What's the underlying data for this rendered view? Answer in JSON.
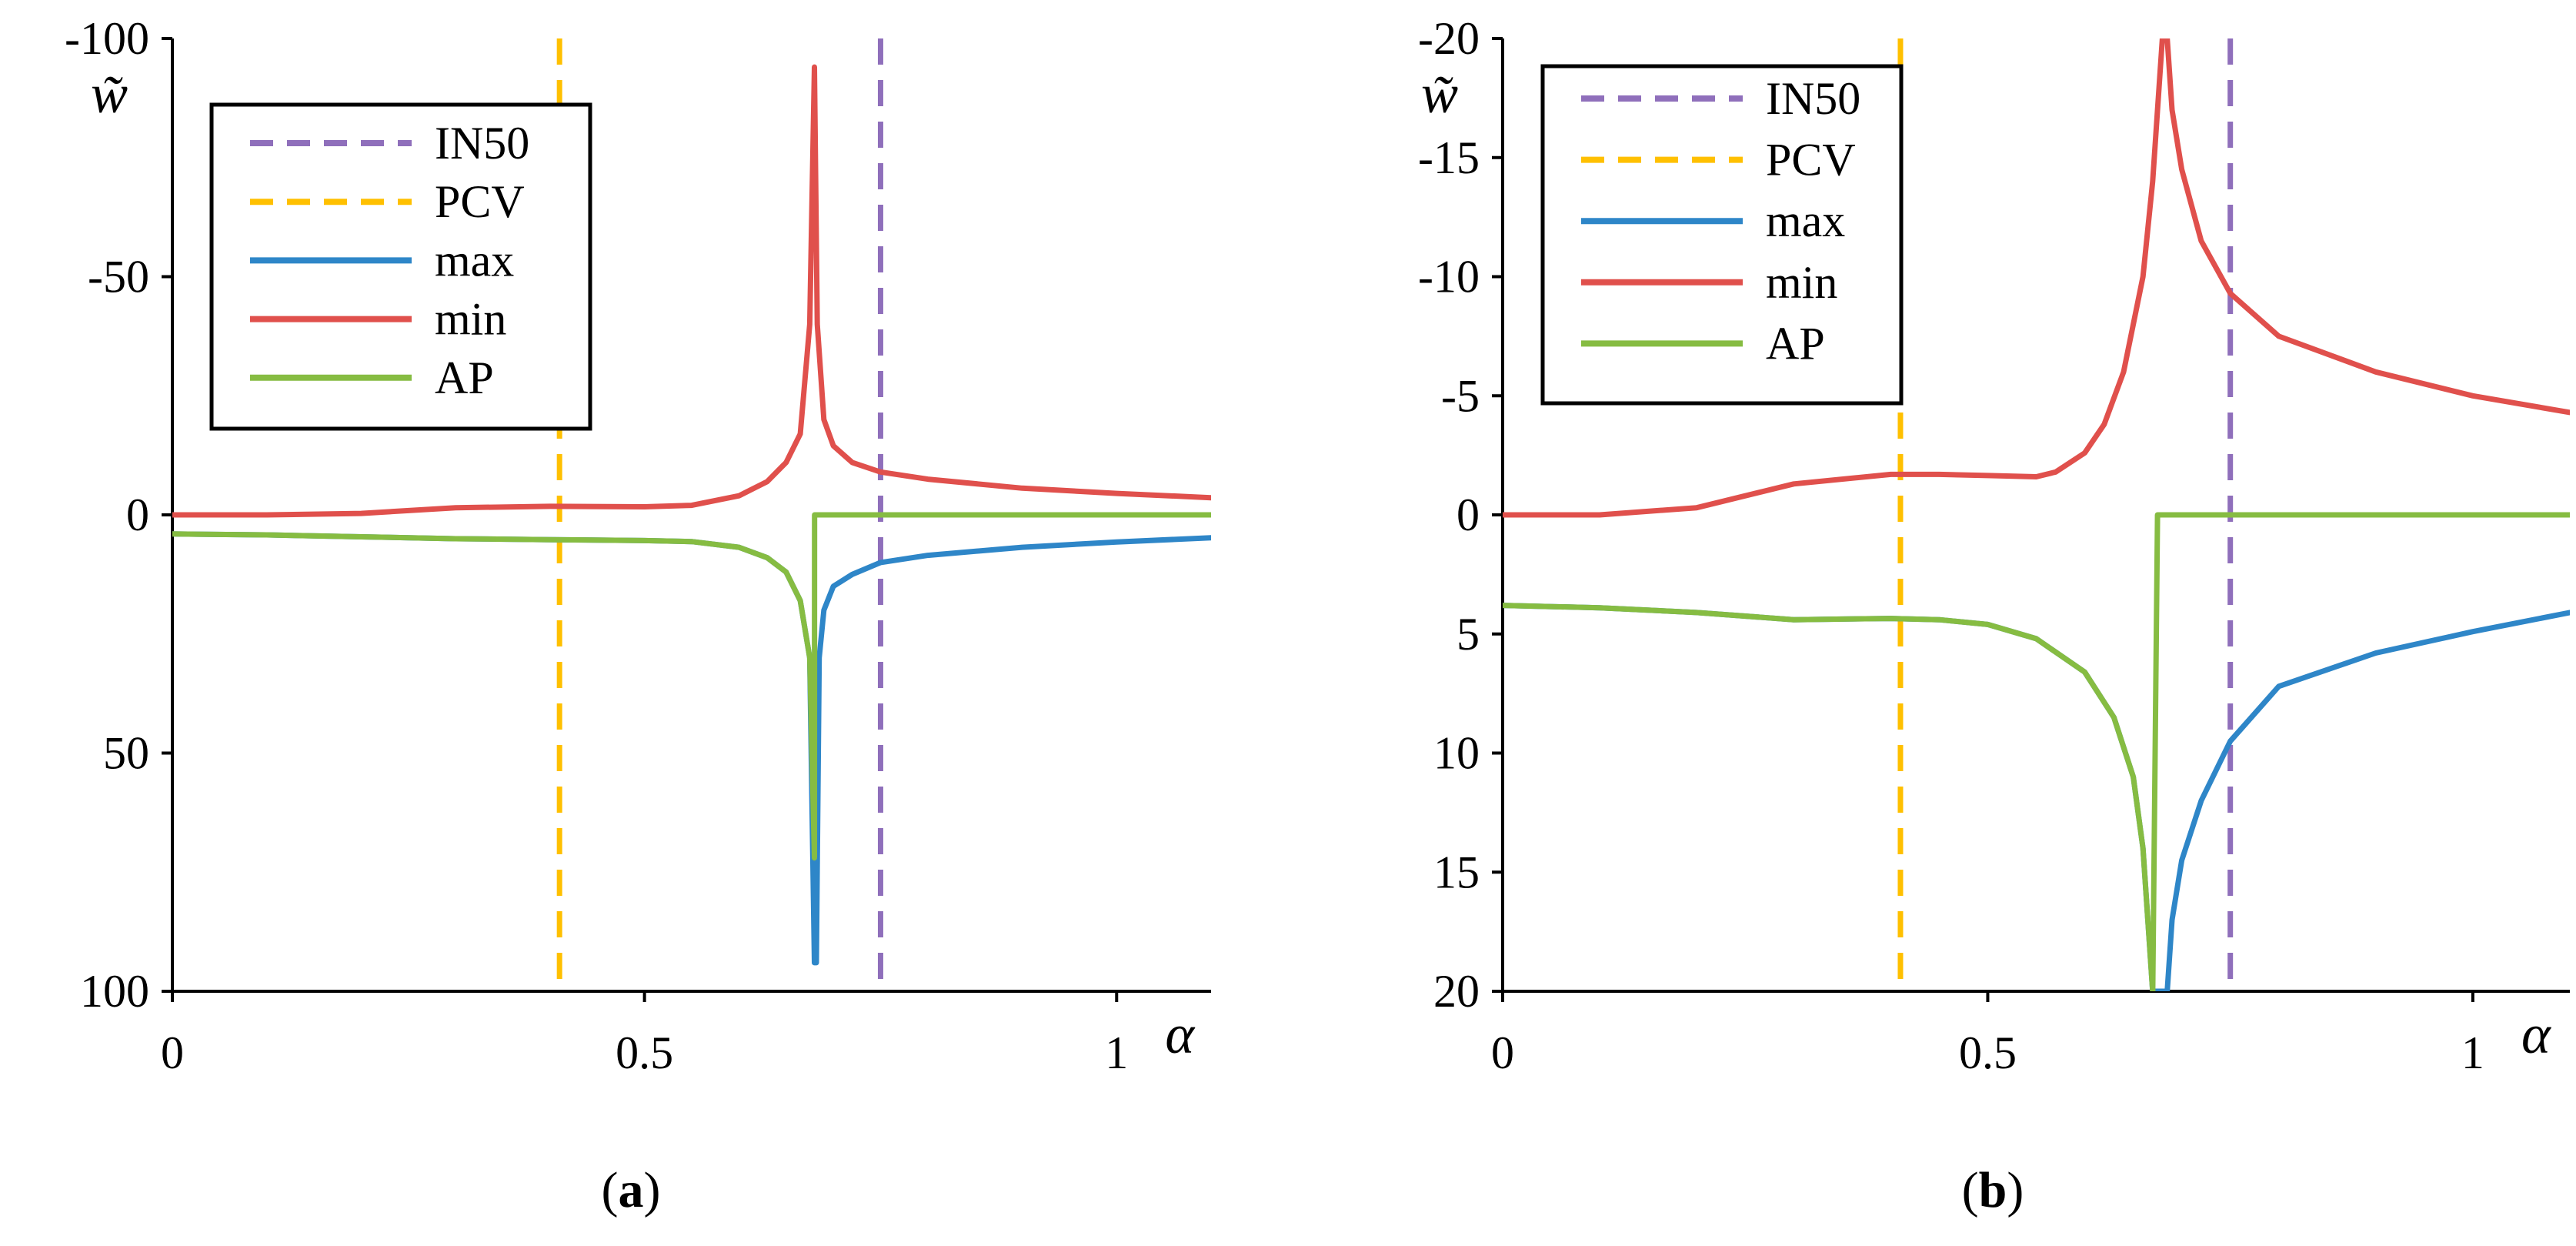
{
  "figure": {
    "panel_a_label_prefix": "(",
    "panel_a_label_letter": "a",
    "panel_a_label_suffix": ")",
    "panel_b_label_prefix": "(",
    "panel_b_label_letter": "b",
    "panel_b_label_suffix": ")"
  },
  "colors": {
    "IN50": "#8f6fbb",
    "PCV": "#ffc000",
    "max": "#2e86c8",
    "min": "#e0504c",
    "AP": "#86bc42"
  },
  "chart_data": [
    {
      "type": "line",
      "panel": "a",
      "ylabel": "w̃",
      "xlabel": "α",
      "xlim": [
        0,
        1.1
      ],
      "ylim": [
        -100,
        100
      ],
      "y_inverted": true,
      "x_ticks": [
        0,
        0.5,
        1
      ],
      "x_tick_labels": [
        "0",
        "0.5",
        "1"
      ],
      "y_ticks": [
        -100,
        -50,
        0,
        50,
        100
      ],
      "y_tick_labels": [
        "-100",
        "-50",
        "0",
        "50",
        "100"
      ],
      "legend": {
        "position": "top-left",
        "entries": [
          "IN50",
          "PCV",
          "max",
          "min",
          "AP"
        ]
      },
      "vlines": [
        {
          "name": "IN50",
          "x": 0.75,
          "style": "dashed"
        },
        {
          "name": "PCV",
          "x": 0.41,
          "style": "dashed"
        }
      ],
      "series": [
        {
          "name": "max",
          "x": [
            0,
            0.1,
            0.2,
            0.3,
            0.4,
            0.5,
            0.55,
            0.6,
            0.63,
            0.65,
            0.665,
            0.675,
            0.68,
            0.682,
            0.685,
            0.69,
            0.7,
            0.72,
            0.75,
            0.8,
            0.9,
            1.0,
            1.1
          ],
          "y": [
            4,
            4.2,
            4.6,
            5,
            5.2,
            5.4,
            5.6,
            6.8,
            9,
            12,
            18,
            30,
            94,
            94,
            30,
            20,
            15,
            12.5,
            10,
            8.5,
            6.8,
            5.7,
            4.8
          ]
        },
        {
          "name": "min",
          "x": [
            0,
            0.1,
            0.2,
            0.3,
            0.4,
            0.5,
            0.55,
            0.6,
            0.63,
            0.65,
            0.665,
            0.675,
            0.68,
            0.683,
            0.69,
            0.7,
            0.72,
            0.75,
            0.8,
            0.9,
            1.0,
            1.1
          ],
          "y": [
            0,
            0,
            -0.3,
            -1.5,
            -1.8,
            -1.7,
            -2,
            -4,
            -7,
            -11,
            -17,
            -40,
            -94,
            -40,
            -20,
            -14.5,
            -11,
            -9,
            -7.5,
            -5.6,
            -4.5,
            -3.6
          ]
        },
        {
          "name": "AP",
          "x": [
            0,
            0.1,
            0.2,
            0.3,
            0.4,
            0.5,
            0.55,
            0.6,
            0.63,
            0.65,
            0.665,
            0.675,
            0.68,
            0.6801,
            1.1
          ],
          "y": [
            4,
            4.2,
            4.6,
            5,
            5.2,
            5.4,
            5.6,
            6.8,
            9,
            12,
            18,
            30,
            72,
            0,
            0
          ]
        }
      ]
    },
    {
      "type": "line",
      "panel": "b",
      "ylabel": "w̃",
      "xlabel": "α",
      "xlim": [
        0,
        1.1
      ],
      "ylim": [
        -20,
        20
      ],
      "y_inverted": true,
      "x_ticks": [
        0,
        0.5,
        1
      ],
      "x_tick_labels": [
        "0",
        "0.5",
        "1"
      ],
      "y_ticks": [
        -20,
        -15,
        -10,
        -5,
        0,
        5,
        10,
        15,
        20
      ],
      "y_tick_labels": [
        "-20",
        "-15",
        "-10",
        "-5",
        "0",
        "5",
        "10",
        "15",
        "20"
      ],
      "legend": {
        "position": "top-left",
        "entries": [
          "IN50",
          "PCV",
          "max",
          "min",
          "AP"
        ]
      },
      "vlines": [
        {
          "name": "IN50",
          "x": 0.75,
          "style": "dashed"
        },
        {
          "name": "PCV",
          "x": 0.41,
          "style": "dashed"
        }
      ],
      "series": [
        {
          "name": "max",
          "x": [
            0,
            0.1,
            0.2,
            0.3,
            0.4,
            0.45,
            0.5,
            0.55,
            0.6,
            0.63,
            0.65,
            0.66,
            0.665,
            0.67,
            0.68,
            0.685,
            0.69,
            0.7,
            0.72,
            0.75,
            0.8,
            0.9,
            1.0,
            1.1
          ],
          "y": [
            3.8,
            3.9,
            4.1,
            4.4,
            4.35,
            4.4,
            4.6,
            5.2,
            6.6,
            8.5,
            11,
            14,
            17,
            20,
            20,
            20,
            17,
            14.5,
            12,
            9.5,
            7.2,
            5.8,
            4.9,
            4.1
          ]
        },
        {
          "name": "min",
          "x": [
            0,
            0.1,
            0.2,
            0.3,
            0.4,
            0.45,
            0.5,
            0.55,
            0.57,
            0.6,
            0.62,
            0.64,
            0.66,
            0.67,
            0.675,
            0.68,
            0.685,
            0.69,
            0.7,
            0.72,
            0.75,
            0.8,
            0.9,
            1.0,
            1.1
          ],
          "y": [
            0,
            0,
            -0.3,
            -1.3,
            -1.7,
            -1.7,
            -1.65,
            -1.6,
            -1.8,
            -2.6,
            -3.8,
            -6,
            -10,
            -14,
            -17,
            -20,
            -20,
            -17,
            -14.5,
            -11.5,
            -9.3,
            -7.5,
            -6,
            -5,
            -4.3
          ]
        },
        {
          "name": "AP",
          "x": [
            0,
            0.1,
            0.2,
            0.3,
            0.4,
            0.45,
            0.5,
            0.55,
            0.6,
            0.63,
            0.65,
            0.66,
            0.665,
            0.67,
            0.6701,
            0.675,
            1.1
          ],
          "y": [
            3.8,
            3.9,
            4.1,
            4.4,
            4.35,
            4.4,
            4.6,
            5.2,
            6.6,
            8.5,
            11,
            14,
            17,
            20,
            20,
            0,
            0
          ]
        }
      ]
    }
  ]
}
